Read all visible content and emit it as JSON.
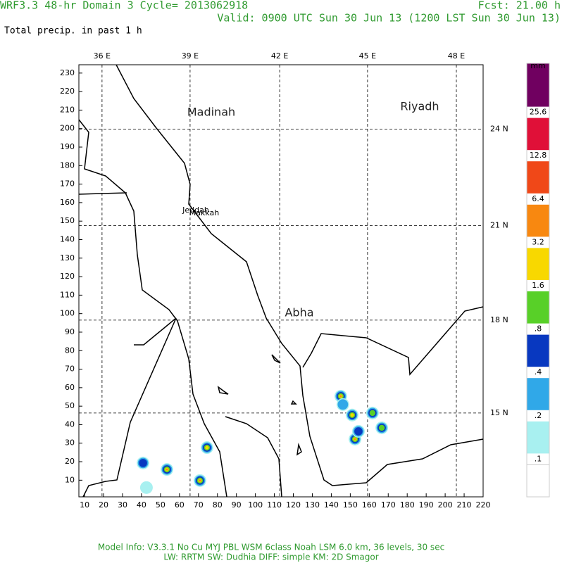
{
  "header": {
    "title": "WRF3.3 48-hr Domain 3 Cycle= 2013062918",
    "forecast": "Fcst:  21.00 h",
    "valid": "Valid: 0900 UTC Sun 30 Jun 13 (1200 LST Sun 30 Jun 13)",
    "field": "Total precip. in past 1 h"
  },
  "map": {
    "xlim": [
      7,
      220
    ],
    "ylim": [
      1,
      234.5
    ],
    "xticks": [
      10,
      20,
      30,
      40,
      50,
      60,
      70,
      80,
      90,
      100,
      110,
      120,
      130,
      140,
      150,
      160,
      170,
      180,
      190,
      200,
      210,
      220
    ],
    "yticks": [
      10,
      20,
      30,
      40,
      50,
      60,
      70,
      80,
      90,
      100,
      110,
      120,
      130,
      140,
      150,
      160,
      170,
      180,
      190,
      200,
      210,
      220,
      230
    ],
    "lon_lines": [
      {
        "value": 19.2,
        "label": "36 E"
      },
      {
        "value": 65.6,
        "label": "39 E"
      },
      {
        "value": 112.8,
        "label": "42 E"
      },
      {
        "value": 159.1,
        "label": "45 E"
      },
      {
        "value": 205.9,
        "label": "48 E"
      }
    ],
    "lat_lines": [
      {
        "value": 199.7,
        "label": "24 N"
      },
      {
        "value": 147.6,
        "label": "21 N"
      },
      {
        "value": 96.5,
        "label": "18 N"
      },
      {
        "value": 46.3,
        "label": "15 N"
      }
    ],
    "precip_cells": [
      {
        "x": 53.4,
        "y": 15.8,
        "value": 6
      },
      {
        "x": 70.8,
        "y": 9.8,
        "value": 6
      },
      {
        "x": 74.5,
        "y": 27.6,
        "value": 3
      },
      {
        "x": 40.8,
        "y": 19.3,
        "value": 0.5
      },
      {
        "x": 42.6,
        "y": 6,
        "value": 0.15
      },
      {
        "x": 145,
        "y": 55.4,
        "value": 4
      },
      {
        "x": 151,
        "y": 45.2,
        "value": 2
      },
      {
        "x": 152.5,
        "y": 32.2,
        "value": 5
      },
      {
        "x": 161.7,
        "y": 46.3,
        "value": 1
      },
      {
        "x": 154.3,
        "y": 36.4,
        "value": 0.5
      },
      {
        "x": 166.6,
        "y": 38.3,
        "value": 0.8
      },
      {
        "x": 146.1,
        "y": 50.9,
        "value": 0.3
      }
    ]
  },
  "places": [
    "Madinah",
    "Riyadh",
    "Jeddah",
    "Makkah",
    "Abha"
  ],
  "colorbar": {
    "unit": "mm",
    "levels": [
      {
        "value": 0.1,
        "label": ".1"
      },
      {
        "value": 0.2,
        "label": ".2"
      },
      {
        "value": 0.4,
        "label": ".4"
      },
      {
        "value": 0.8,
        "label": ".8"
      },
      1.6,
      3.2,
      6.4,
      12.8,
      25.6
    ],
    "colors": [
      "#ffffff",
      "#a8f0f0",
      "#30a8e8",
      "#0838c0",
      "#58d028",
      "#f8d800",
      "#f88810",
      "#f04818",
      "#e01038",
      "#700060"
    ]
  },
  "footer": {
    "line1": "Model Info: V3.3.1    No Cu    MYJ PBL    WSM 6class    Noah LSM    6.0 km,    36 levels,    30 sec",
    "line2": "LW: RRTM  SW: Dudhia   DIFF: simple  KM: 2D Smagor"
  }
}
